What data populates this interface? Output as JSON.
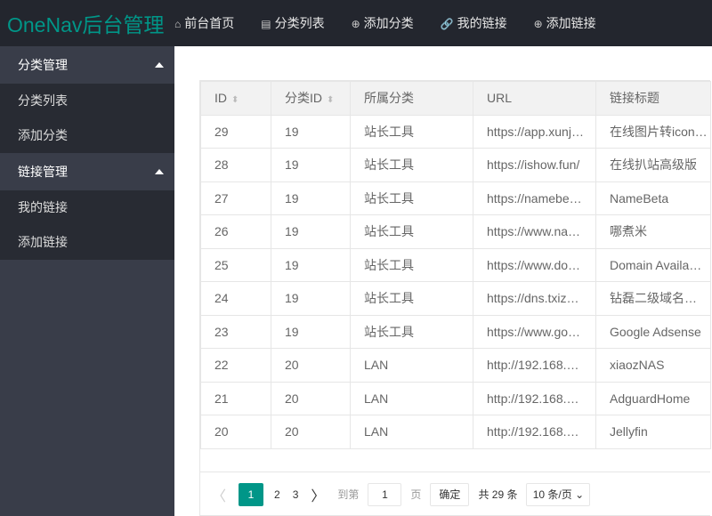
{
  "header": {
    "logo": "OneNav后台管理",
    "nav": [
      {
        "icon": "home-icon",
        "glyph": "⌂",
        "label": "前台首页"
      },
      {
        "icon": "file-icon",
        "glyph": "▤",
        "label": "分类列表"
      },
      {
        "icon": "plus-circle-icon",
        "glyph": "⊕",
        "label": "添加分类"
      },
      {
        "icon": "link-icon",
        "glyph": "🔗",
        "label": "我的链接"
      },
      {
        "icon": "plus-circle-icon",
        "glyph": "⊕",
        "label": "添加链接"
      }
    ]
  },
  "sidebar": {
    "sections": [
      {
        "title": "分类管理",
        "items": [
          "分类列表",
          "添加分类"
        ]
      },
      {
        "title": "链接管理",
        "items": [
          "我的链接",
          "添加链接"
        ]
      }
    ]
  },
  "table": {
    "columns": [
      "ID",
      "分类ID",
      "所属分类",
      "URL",
      "链接标题"
    ],
    "rows": [
      [
        "29",
        "19",
        "站长工具",
        "https://app.xunj…",
        "在线图片转icon…"
      ],
      [
        "28",
        "19",
        "站长工具",
        "https://ishow.fun/",
        "在线扒站高级版"
      ],
      [
        "27",
        "19",
        "站长工具",
        "https://namebe…",
        "NameBeta"
      ],
      [
        "26",
        "19",
        "站长工具",
        "https://www.na…",
        "哪煮米"
      ],
      [
        "25",
        "19",
        "站长工具",
        "https://www.do…",
        "Domain Availa…"
      ],
      [
        "24",
        "19",
        "站长工具",
        "https://dns.txiz…",
        "钻磊二级域名…"
      ],
      [
        "23",
        "19",
        "站长工具",
        "https://www.go…",
        "Google Adsense"
      ],
      [
        "22",
        "20",
        "LAN",
        "http://192.168.…",
        "xiaozNAS"
      ],
      [
        "21",
        "20",
        "LAN",
        "http://192.168.…",
        "AdguardHome"
      ],
      [
        "20",
        "20",
        "LAN",
        "http://192.168.…",
        "Jellyfin"
      ]
    ]
  },
  "pager": {
    "prev": "〈",
    "pages": [
      "1",
      "2",
      "3"
    ],
    "current": "1",
    "next": "〉",
    "goto_label": "到第",
    "goto_value": "1",
    "page_unit": "页",
    "confirm": "确定",
    "total": "共 29 条",
    "page_size": "10 条/页"
  },
  "colors": {
    "accent": "#009688",
    "header_bg": "#23262e",
    "sidebar_bg": "#393d49"
  }
}
